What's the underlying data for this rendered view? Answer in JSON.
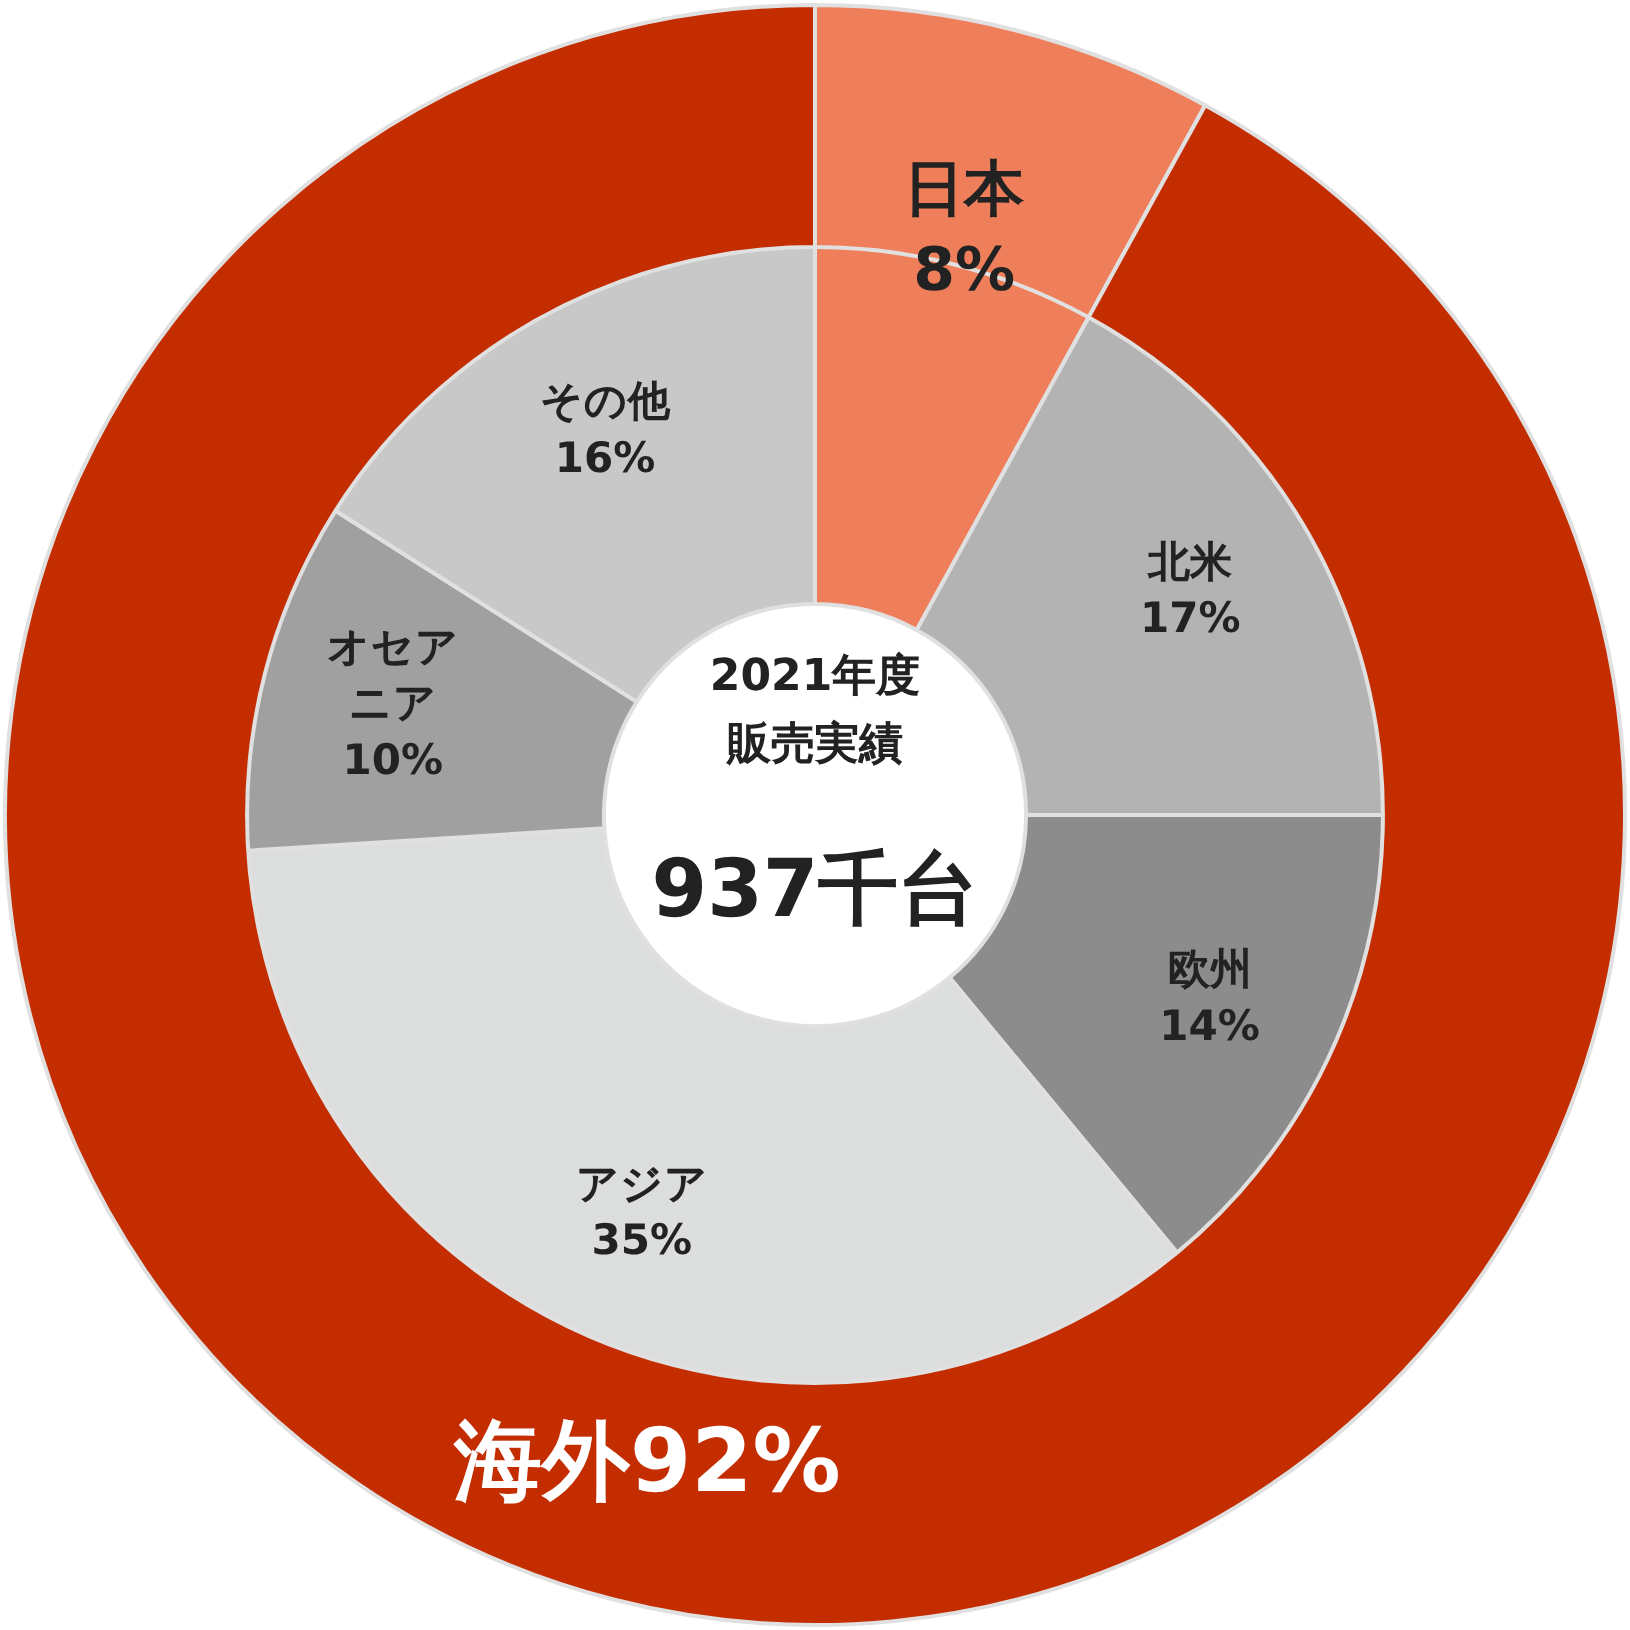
{
  "chart_data": [
    {
      "type": "donut",
      "categories": [
        "日本",
        "海外"
      ],
      "values": [
        8,
        92
      ],
      "colors": [
        "#ef7f5a",
        "#c42d00"
      ],
      "value_labels": [
        "8%",
        "92%"
      ]
    },
    {
      "type": "donut",
      "categories": [
        null,
        "北米",
        "欧州",
        "アジア",
        "オセアニア",
        "その他"
      ],
      "values": [
        8,
        17,
        14,
        35,
        10,
        16
      ],
      "colors": [
        "#ef7f5a",
        "#b3b3b3",
        "#8c8c8c",
        "#dcdddd",
        "#a0a0a0",
        "#c8c8c8"
      ],
      "value_labels": [
        null,
        "17%",
        "14%",
        "35%",
        "10%",
        "16%"
      ],
      "annotations": [
        "2021年度",
        "販売実績",
        "937千台"
      ]
    }
  ]
}
